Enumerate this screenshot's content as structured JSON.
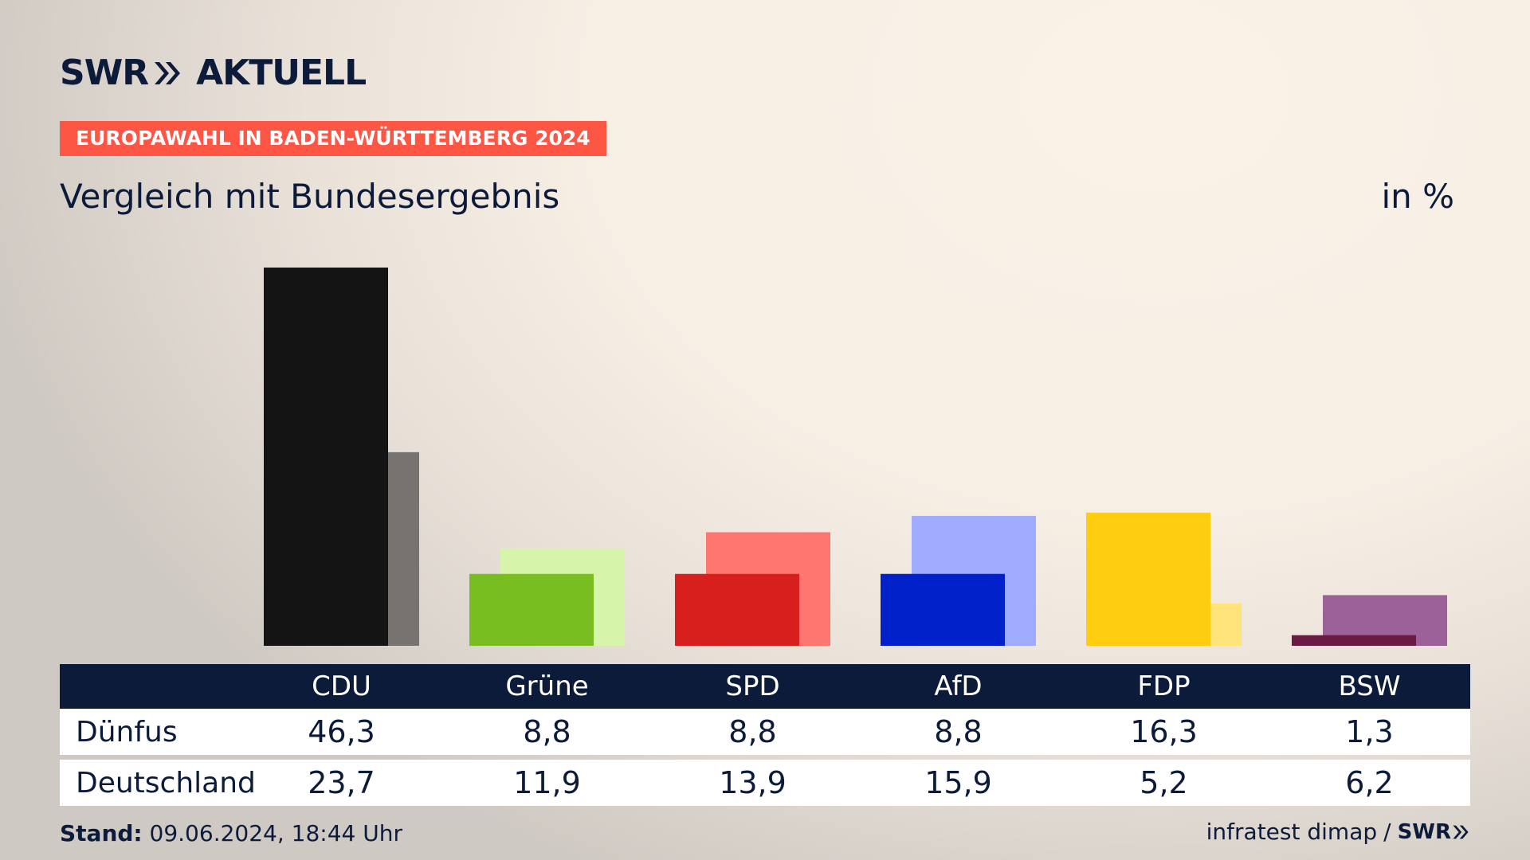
{
  "brand": {
    "logo_left": "SWR",
    "logo_right": "AKTUELL",
    "footer_logo": "SWR",
    "chevron_icon": "double-chevron-right-icon"
  },
  "badge": "EUROPAWAHL IN BADEN-WÜRTTEMBERG 2024",
  "subtitle": "Vergleich mit Bundesergebnis",
  "unit": "in %",
  "footer": {
    "stand_label": "Stand:",
    "stand_value": "09.06.2024, 18:44 Uhr",
    "source": "infratest dimap",
    "separator": "/"
  },
  "colors": {
    "navy": "#0d1b3a",
    "badge": "#fd5644"
  },
  "chart_data": {
    "type": "bar",
    "categories": [
      "CDU",
      "Grüne",
      "SPD",
      "AfD",
      "FDP",
      "BSW"
    ],
    "series": [
      {
        "name": "Dünfus",
        "values": [
          46.3,
          8.8,
          8.8,
          8.8,
          16.3,
          1.3
        ],
        "colors": [
          "#141414",
          "#78be20",
          "#d7201e",
          "#0021c9",
          "#ffcd0f",
          "#6b1a43"
        ]
      },
      {
        "name": "Deutschland",
        "values": [
          23.7,
          11.9,
          13.9,
          15.9,
          5.2,
          6.2
        ],
        "colors": [
          "#767370",
          "#d6f5aa",
          "#ff7670",
          "#9fabff",
          "#ffe47a",
          "#9b6198"
        ]
      }
    ]
  }
}
